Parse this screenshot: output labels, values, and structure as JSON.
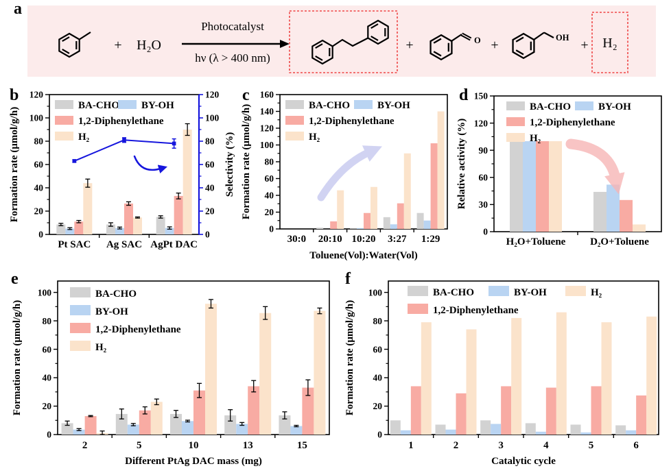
{
  "figure": {
    "panel_labels": {
      "a": "a",
      "b": "b",
      "c": "c",
      "d": "d",
      "e": "e",
      "f": "f"
    }
  },
  "colors": {
    "ba_cho": "#d2d2d2",
    "by_oh": "#b9d4f2",
    "diphenylethane": "#f8aba3",
    "h2": "#fbe3cb",
    "selectivity_line": "#1616dd",
    "scheme_box": "#ee4444",
    "scheme_bg": "#fcebeb",
    "arrow_c": "#b4b7ea",
    "arrow_d": "#f7b6b6"
  },
  "panel_a": {
    "plus": "+",
    "water": "H₂O",
    "arrow_top": "Photocatalyst",
    "arrow_bottom": "hν (λ > 400 nm)",
    "aldehyde_o": "O",
    "alcohol_oh": "OH",
    "h2": "H₂"
  },
  "chart_data": [
    {
      "id": "b",
      "type": "bar",
      "ylabel": "Formation rate (μmol/g/h)",
      "xlabel": "",
      "ylim": [
        0,
        120
      ],
      "yticks": [
        0,
        20,
        40,
        60,
        80,
        100,
        120
      ],
      "categories": [
        "Pt SAC",
        "Ag SAC",
        "AgPt DAC"
      ],
      "legend_rows": [
        [
          0,
          1
        ],
        [
          2
        ],
        [
          3
        ]
      ],
      "series": [
        {
          "name": "BA-CHO",
          "color": "#d2d2d2",
          "values": [
            8.5,
            8.5,
            15
          ],
          "errors": [
            1,
            1.5,
            1
          ]
        },
        {
          "name": "BY-OH",
          "color": "#b9d4f2",
          "values": [
            5,
            5.5,
            5.5
          ],
          "errors": [
            0.8,
            0.8,
            1
          ]
        },
        {
          "name": "1,2-Diphenylethane",
          "color": "#f8aba3",
          "values": [
            11,
            26.5,
            33
          ],
          "errors": [
            1,
            1.5,
            2.5
          ]
        },
        {
          "name": "H₂",
          "color": "#fbe3cb",
          "values": [
            44,
            14.5,
            90
          ],
          "errors": [
            3.5,
            0.5,
            5
          ]
        }
      ],
      "right_axis": {
        "label": "Selectivity (%)",
        "color": "#1616dd",
        "ylim": [
          0,
          120
        ],
        "yticks": [
          0,
          20,
          40,
          60,
          80,
          100,
          120
        ],
        "line_series": {
          "name": "Selectivity",
          "values": [
            63,
            81,
            78
          ],
          "errors": [
            1,
            2,
            4
          ]
        }
      },
      "arrow_color": "#1616dd"
    },
    {
      "id": "c",
      "type": "bar",
      "ylabel": "Formation rate (μmol/g/h)",
      "xlabel": "Toluene(Vol):Water(Vol)",
      "ylim": [
        0,
        160
      ],
      "yticks": [
        0,
        20,
        40,
        60,
        80,
        100,
        120,
        140,
        160
      ],
      "categories": [
        "30:0",
        "20:10",
        "10:20",
        "3:27",
        "1:29"
      ],
      "legend_rows": [
        [
          0,
          1
        ],
        [
          2
        ],
        [
          3
        ]
      ],
      "series": [
        {
          "name": "BA-CHO",
          "color": "#d2d2d2",
          "values": [
            0,
            1.5,
            0.5,
            14,
            19
          ]
        },
        {
          "name": "BY-OH",
          "color": "#b9d4f2",
          "values": [
            0,
            0,
            1,
            5.5,
            10
          ]
        },
        {
          "name": "1,2-Diphenylethane",
          "color": "#f8aba3",
          "values": [
            0,
            9,
            19,
            30.5,
            102
          ]
        },
        {
          "name": "H₂",
          "color": "#fbe3cb",
          "values": [
            0,
            46,
            50,
            90,
            140
          ]
        }
      ],
      "arrow_color": "#b4b7ea"
    },
    {
      "id": "d",
      "type": "bar",
      "ylabel": "Relative activity (%)",
      "xlabel": "",
      "ylim": [
        0,
        150
      ],
      "yticks": [
        0,
        30,
        60,
        90,
        120,
        150
      ],
      "categories": [
        "H₂O+Toluene",
        "D₂O+Toluene"
      ],
      "legend_rows": [
        [
          0,
          1
        ],
        [
          2
        ],
        [
          3
        ]
      ],
      "series": [
        {
          "name": "BA-CHO",
          "color": "#d2d2d2",
          "values": [
            100,
            44
          ]
        },
        {
          "name": "BY-OH",
          "color": "#b9d4f2",
          "values": [
            100,
            52
          ]
        },
        {
          "name": "1,2-Diphenylethane",
          "color": "#f8aba3",
          "values": [
            100,
            35
          ]
        },
        {
          "name": "H₂",
          "color": "#fbe3cb",
          "values": [
            100,
            8
          ]
        }
      ],
      "arrow_color": "#f7b6b6"
    },
    {
      "id": "e",
      "type": "bar",
      "ylabel": "Formation rate (μmol/g/h)",
      "xlabel": "Different PtAg DAC mass (mg)",
      "ylim": [
        0,
        108
      ],
      "yticks": [
        0,
        20,
        40,
        60,
        80,
        100
      ],
      "categories": [
        "2",
        "5",
        "10",
        "13",
        "15"
      ],
      "legend_rows": [
        [
          0
        ],
        [
          1
        ],
        [
          2
        ],
        [
          3
        ]
      ],
      "series": [
        {
          "name": "BA-CHO",
          "color": "#d2d2d2",
          "values": [
            8,
            14.5,
            14.5,
            13.5,
            13.5
          ],
          "errors": [
            1.5,
            3.5,
            2.5,
            4,
            2.5
          ]
        },
        {
          "name": "BY-OH",
          "color": "#b9d4f2",
          "values": [
            3.5,
            7,
            9.5,
            7.5,
            6
          ],
          "errors": [
            0.7,
            0.8,
            0.6,
            1,
            0.5
          ]
        },
        {
          "name": "1,2-Diphenylethane",
          "color": "#f8aba3",
          "values": [
            13,
            17,
            31,
            34,
            33
          ],
          "errors": [
            0.4,
            2.5,
            5,
            4,
            5.5
          ]
        },
        {
          "name": "H₂",
          "color": "#fbe3cb",
          "values": [
            1,
            23,
            92,
            85.5,
            87
          ],
          "errors": [
            1.5,
            2,
            3,
            4.5,
            2
          ]
        }
      ]
    },
    {
      "id": "f",
      "type": "bar",
      "ylabel": "Formation rate (μmol/g/h)",
      "xlabel": "Catalytic cycle",
      "ylim": [
        0,
        108
      ],
      "yticks": [
        0,
        20,
        40,
        60,
        80,
        100
      ],
      "categories": [
        "1",
        "2",
        "3",
        "4",
        "5",
        "6"
      ],
      "legend_rows": [
        [
          0,
          1,
          3
        ],
        [
          2
        ]
      ],
      "series": [
        {
          "name": "BA-CHO",
          "color": "#d2d2d2",
          "values": [
            10,
            7,
            10,
            8,
            7,
            6.5
          ]
        },
        {
          "name": "BY-OH",
          "color": "#b9d4f2",
          "values": [
            3,
            3.5,
            7.5,
            2,
            1.5,
            3
          ]
        },
        {
          "name": "1,2-Diphenylethane",
          "color": "#f8aba3",
          "values": [
            34,
            29,
            34,
            33,
            34,
            27.5
          ]
        },
        {
          "name": "H₂",
          "color": "#fbe3cb",
          "values": [
            79,
            74,
            82,
            86,
            79,
            83
          ]
        }
      ]
    }
  ]
}
